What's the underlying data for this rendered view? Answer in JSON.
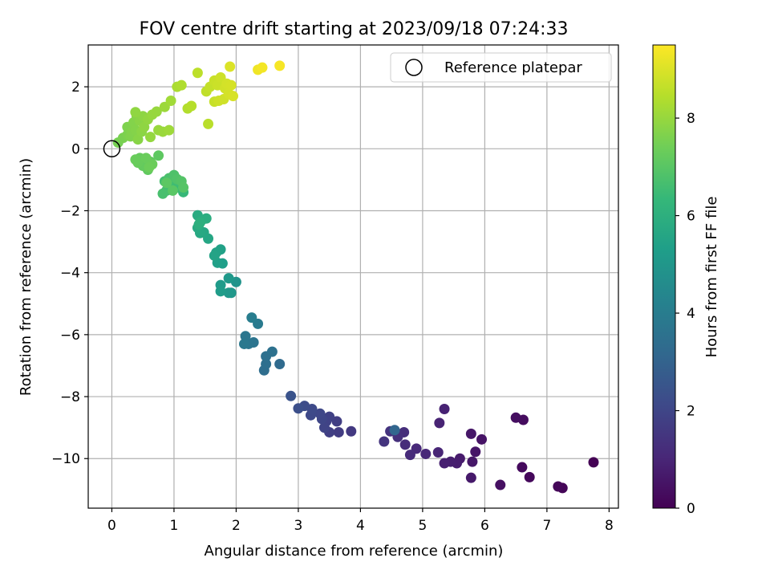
{
  "chart_data": {
    "type": "scatter",
    "title": "FOV centre drift starting at 2023/09/18 07:24:33",
    "xlabel": "Angular distance from reference (arcmin)",
    "ylabel": "Rotation from reference (arcmin)",
    "xlim": [
      -0.38,
      8.15
    ],
    "ylim": [
      -11.6,
      3.35
    ],
    "xticks": [
      0,
      1,
      2,
      3,
      4,
      5,
      6,
      7,
      8
    ],
    "yticks": [
      -10,
      -8,
      -6,
      -4,
      -2,
      0,
      2
    ],
    "grid": true,
    "legend": {
      "position": "top-right",
      "entries": [
        "Reference platepar"
      ]
    },
    "reference_point": {
      "x": 0,
      "y": 0,
      "label": "Reference platepar"
    },
    "colorbar": {
      "label": "Hours from first FF file",
      "colormap": "viridis",
      "range": [
        0,
        9.5
      ],
      "ticks": [
        0,
        2,
        4,
        6,
        8
      ]
    },
    "points": [
      {
        "x": 7.75,
        "y": -10.12,
        "t": 0.0
      },
      {
        "x": 7.25,
        "y": -10.95,
        "t": 0.1
      },
      {
        "x": 7.18,
        "y": -10.9,
        "t": 0.15
      },
      {
        "x": 6.72,
        "y": -10.6,
        "t": 0.2
      },
      {
        "x": 6.6,
        "y": -10.28,
        "t": 0.25
      },
      {
        "x": 6.62,
        "y": -8.75,
        "t": 0.3
      },
      {
        "x": 6.5,
        "y": -8.68,
        "t": 0.35
      },
      {
        "x": 6.25,
        "y": -10.85,
        "t": 0.4
      },
      {
        "x": 5.95,
        "y": -9.38,
        "t": 0.5
      },
      {
        "x": 5.85,
        "y": -9.78,
        "t": 0.55
      },
      {
        "x": 5.78,
        "y": -9.2,
        "t": 0.6
      },
      {
        "x": 5.8,
        "y": -10.1,
        "t": 0.6
      },
      {
        "x": 5.78,
        "y": -10.62,
        "t": 0.65
      },
      {
        "x": 5.6,
        "y": -10.0,
        "t": 0.7
      },
      {
        "x": 5.55,
        "y": -10.15,
        "t": 0.75
      },
      {
        "x": 5.45,
        "y": -10.1,
        "t": 0.8
      },
      {
        "x": 5.35,
        "y": -10.15,
        "t": 0.85
      },
      {
        "x": 5.35,
        "y": -8.4,
        "t": 0.9
      },
      {
        "x": 5.27,
        "y": -8.85,
        "t": 0.95
      },
      {
        "x": 5.25,
        "y": -9.8,
        "t": 1.0
      },
      {
        "x": 5.05,
        "y": -9.85,
        "t": 1.05
      },
      {
        "x": 4.9,
        "y": -9.68,
        "t": 1.1
      },
      {
        "x": 4.8,
        "y": -9.88,
        "t": 1.15
      },
      {
        "x": 4.72,
        "y": -9.55,
        "t": 1.2
      },
      {
        "x": 4.7,
        "y": -9.15,
        "t": 1.25
      },
      {
        "x": 4.6,
        "y": -9.3,
        "t": 1.3
      },
      {
        "x": 4.55,
        "y": -9.1,
        "t": 1.35
      },
      {
        "x": 4.48,
        "y": -9.12,
        "t": 1.4
      },
      {
        "x": 4.38,
        "y": -9.45,
        "t": 1.45
      },
      {
        "x": 3.85,
        "y": -9.12,
        "t": 1.6
      },
      {
        "x": 3.65,
        "y": -9.15,
        "t": 1.7
      },
      {
        "x": 3.62,
        "y": -8.8,
        "t": 1.75
      },
      {
        "x": 3.5,
        "y": -9.15,
        "t": 1.8
      },
      {
        "x": 3.5,
        "y": -8.65,
        "t": 1.85
      },
      {
        "x": 3.45,
        "y": -8.8,
        "t": 1.9
      },
      {
        "x": 3.42,
        "y": -9.0,
        "t": 1.95
      },
      {
        "x": 3.38,
        "y": -8.72,
        "t": 2.0
      },
      {
        "x": 3.35,
        "y": -8.55,
        "t": 2.05
      },
      {
        "x": 3.2,
        "y": -8.6,
        "t": 2.1
      },
      {
        "x": 3.22,
        "y": -8.4,
        "t": 2.15
      },
      {
        "x": 3.1,
        "y": -8.3,
        "t": 2.2
      },
      {
        "x": 3.0,
        "y": -8.38,
        "t": 2.3
      },
      {
        "x": 2.88,
        "y": -7.98,
        "t": 2.45
      },
      {
        "x": 4.55,
        "y": -9.08,
        "t": 3.1
      },
      {
        "x": 2.7,
        "y": -6.95,
        "t": 3.3
      },
      {
        "x": 2.45,
        "y": -7.15,
        "t": 3.4
      },
      {
        "x": 2.48,
        "y": -6.95,
        "t": 3.45
      },
      {
        "x": 2.48,
        "y": -6.7,
        "t": 3.5
      },
      {
        "x": 2.58,
        "y": -6.55,
        "t": 3.55
      },
      {
        "x": 2.28,
        "y": -6.25,
        "t": 3.65
      },
      {
        "x": 2.2,
        "y": -6.3,
        "t": 3.7
      },
      {
        "x": 2.15,
        "y": -6.05,
        "t": 3.75
      },
      {
        "x": 2.13,
        "y": -6.3,
        "t": 3.8
      },
      {
        "x": 2.35,
        "y": -5.65,
        "t": 3.9
      },
      {
        "x": 2.25,
        "y": -5.45,
        "t": 4.0
      },
      {
        "x": 2.0,
        "y": -4.3,
        "t": 4.9
      },
      {
        "x": 1.92,
        "y": -4.65,
        "t": 5.0
      },
      {
        "x": 1.88,
        "y": -4.65,
        "t": 5.05
      },
      {
        "x": 1.88,
        "y": -4.18,
        "t": 5.1
      },
      {
        "x": 1.75,
        "y": -4.4,
        "t": 5.15
      },
      {
        "x": 1.75,
        "y": -4.6,
        "t": 5.2
      },
      {
        "x": 1.78,
        "y": -3.7,
        "t": 5.3
      },
      {
        "x": 1.7,
        "y": -3.68,
        "t": 5.35
      },
      {
        "x": 1.75,
        "y": -3.25,
        "t": 5.4
      },
      {
        "x": 1.68,
        "y": -3.35,
        "t": 5.45
      },
      {
        "x": 1.65,
        "y": -3.45,
        "t": 5.5
      },
      {
        "x": 1.55,
        "y": -2.9,
        "t": 5.6
      },
      {
        "x": 1.48,
        "y": -2.7,
        "t": 5.65
      },
      {
        "x": 1.42,
        "y": -2.72,
        "t": 5.7
      },
      {
        "x": 1.38,
        "y": -2.55,
        "t": 5.75
      },
      {
        "x": 1.38,
        "y": -2.15,
        "t": 5.8
      },
      {
        "x": 1.45,
        "y": -2.3,
        "t": 5.85
      },
      {
        "x": 1.52,
        "y": -2.25,
        "t": 5.9
      },
      {
        "x": 1.4,
        "y": -2.45,
        "t": 5.95
      },
      {
        "x": 1.42,
        "y": -2.38,
        "t": 6.0
      },
      {
        "x": 1.15,
        "y": -1.4,
        "t": 6.35
      },
      {
        "x": 1.1,
        "y": -1.15,
        "t": 6.4
      },
      {
        "x": 1.05,
        "y": -1.25,
        "t": 6.45
      },
      {
        "x": 1.0,
        "y": -1.1,
        "t": 6.5
      },
      {
        "x": 0.92,
        "y": -1.2,
        "t": 6.55
      },
      {
        "x": 0.88,
        "y": -1.35,
        "t": 6.6
      },
      {
        "x": 0.85,
        "y": -1.05,
        "t": 6.65
      },
      {
        "x": 0.82,
        "y": -1.45,
        "t": 6.7
      },
      {
        "x": 0.92,
        "y": -0.95,
        "t": 6.75
      },
      {
        "x": 1.0,
        "y": -0.85,
        "t": 6.8
      },
      {
        "x": 1.05,
        "y": -0.98,
        "t": 6.85
      },
      {
        "x": 1.12,
        "y": -1.05,
        "t": 6.9
      },
      {
        "x": 1.15,
        "y": -1.25,
        "t": 6.95
      },
      {
        "x": 0.98,
        "y": -1.35,
        "t": 7.0
      },
      {
        "x": 0.88,
        "y": -1.1,
        "t": 7.05
      },
      {
        "x": 0.75,
        "y": -0.22,
        "t": 7.1
      },
      {
        "x": 0.62,
        "y": -0.42,
        "t": 7.12
      },
      {
        "x": 0.58,
        "y": -0.68,
        "t": 7.15
      },
      {
        "x": 0.55,
        "y": -0.52,
        "t": 7.18
      },
      {
        "x": 0.5,
        "y": -0.55,
        "t": 7.2
      },
      {
        "x": 0.45,
        "y": -0.3,
        "t": 7.22
      },
      {
        "x": 0.42,
        "y": -0.45,
        "t": 7.25
      },
      {
        "x": 0.38,
        "y": -0.35,
        "t": 7.28
      },
      {
        "x": 0.55,
        "y": -0.3,
        "t": 7.3
      },
      {
        "x": 0.65,
        "y": -0.5,
        "t": 7.32
      },
      {
        "x": 0.6,
        "y": -0.6,
        "t": 7.35
      },
      {
        "x": 0.1,
        "y": 0.2,
        "t": 7.5
      },
      {
        "x": 0.18,
        "y": 0.35,
        "t": 7.55
      },
      {
        "x": 0.25,
        "y": 0.45,
        "t": 7.6
      },
      {
        "x": 0.25,
        "y": 0.7,
        "t": 7.62
      },
      {
        "x": 0.3,
        "y": 0.4,
        "t": 7.65
      },
      {
        "x": 0.32,
        "y": 0.55,
        "t": 7.68
      },
      {
        "x": 0.35,
        "y": 0.85,
        "t": 7.7
      },
      {
        "x": 0.38,
        "y": 0.6,
        "t": 7.72
      },
      {
        "x": 0.4,
        "y": 1.05,
        "t": 7.75
      },
      {
        "x": 0.42,
        "y": 0.3,
        "t": 7.78
      },
      {
        "x": 0.45,
        "y": 0.9,
        "t": 7.8
      },
      {
        "x": 0.48,
        "y": 0.55,
        "t": 7.82
      },
      {
        "x": 0.5,
        "y": 1.05,
        "t": 7.85
      },
      {
        "x": 0.52,
        "y": 0.7,
        "t": 7.88
      },
      {
        "x": 0.38,
        "y": 1.18,
        "t": 7.9
      },
      {
        "x": 0.58,
        "y": 0.95,
        "t": 7.92
      },
      {
        "x": 0.62,
        "y": 0.38,
        "t": 7.95
      },
      {
        "x": 0.65,
        "y": 1.1,
        "t": 7.98
      },
      {
        "x": 0.72,
        "y": 1.2,
        "t": 8.0
      },
      {
        "x": 0.75,
        "y": 0.6,
        "t": 8.02
      },
      {
        "x": 0.82,
        "y": 0.55,
        "t": 8.05
      },
      {
        "x": 0.85,
        "y": 1.35,
        "t": 8.08
      },
      {
        "x": 0.92,
        "y": 0.6,
        "t": 8.1
      },
      {
        "x": 0.95,
        "y": 1.55,
        "t": 8.15
      },
      {
        "x": 1.05,
        "y": 2.0,
        "t": 8.3
      },
      {
        "x": 1.12,
        "y": 2.05,
        "t": 8.35
      },
      {
        "x": 1.22,
        "y": 1.3,
        "t": 8.4
      },
      {
        "x": 1.28,
        "y": 1.38,
        "t": 8.45
      },
      {
        "x": 1.55,
        "y": 0.8,
        "t": 8.5
      },
      {
        "x": 1.38,
        "y": 2.45,
        "t": 8.55
      },
      {
        "x": 1.52,
        "y": 1.85,
        "t": 8.6
      },
      {
        "x": 1.58,
        "y": 2.0,
        "t": 8.65
      },
      {
        "x": 1.65,
        "y": 1.52,
        "t": 8.7
      },
      {
        "x": 1.65,
        "y": 2.2,
        "t": 8.72
      },
      {
        "x": 1.7,
        "y": 2.05,
        "t": 8.75
      },
      {
        "x": 1.72,
        "y": 1.55,
        "t": 8.78
      },
      {
        "x": 1.75,
        "y": 2.3,
        "t": 8.8
      },
      {
        "x": 1.8,
        "y": 1.6,
        "t": 8.82
      },
      {
        "x": 1.82,
        "y": 1.95,
        "t": 8.85
      },
      {
        "x": 1.85,
        "y": 2.1,
        "t": 8.88
      },
      {
        "x": 1.88,
        "y": 1.78,
        "t": 8.9
      },
      {
        "x": 1.92,
        "y": 2.05,
        "t": 8.92
      },
      {
        "x": 1.95,
        "y": 1.7,
        "t": 8.95
      },
      {
        "x": 1.9,
        "y": 2.65,
        "t": 9.0
      },
      {
        "x": 2.35,
        "y": 2.55,
        "t": 9.3
      },
      {
        "x": 2.42,
        "y": 2.62,
        "t": 9.35
      },
      {
        "x": 2.7,
        "y": 2.68,
        "t": 9.4
      }
    ]
  }
}
